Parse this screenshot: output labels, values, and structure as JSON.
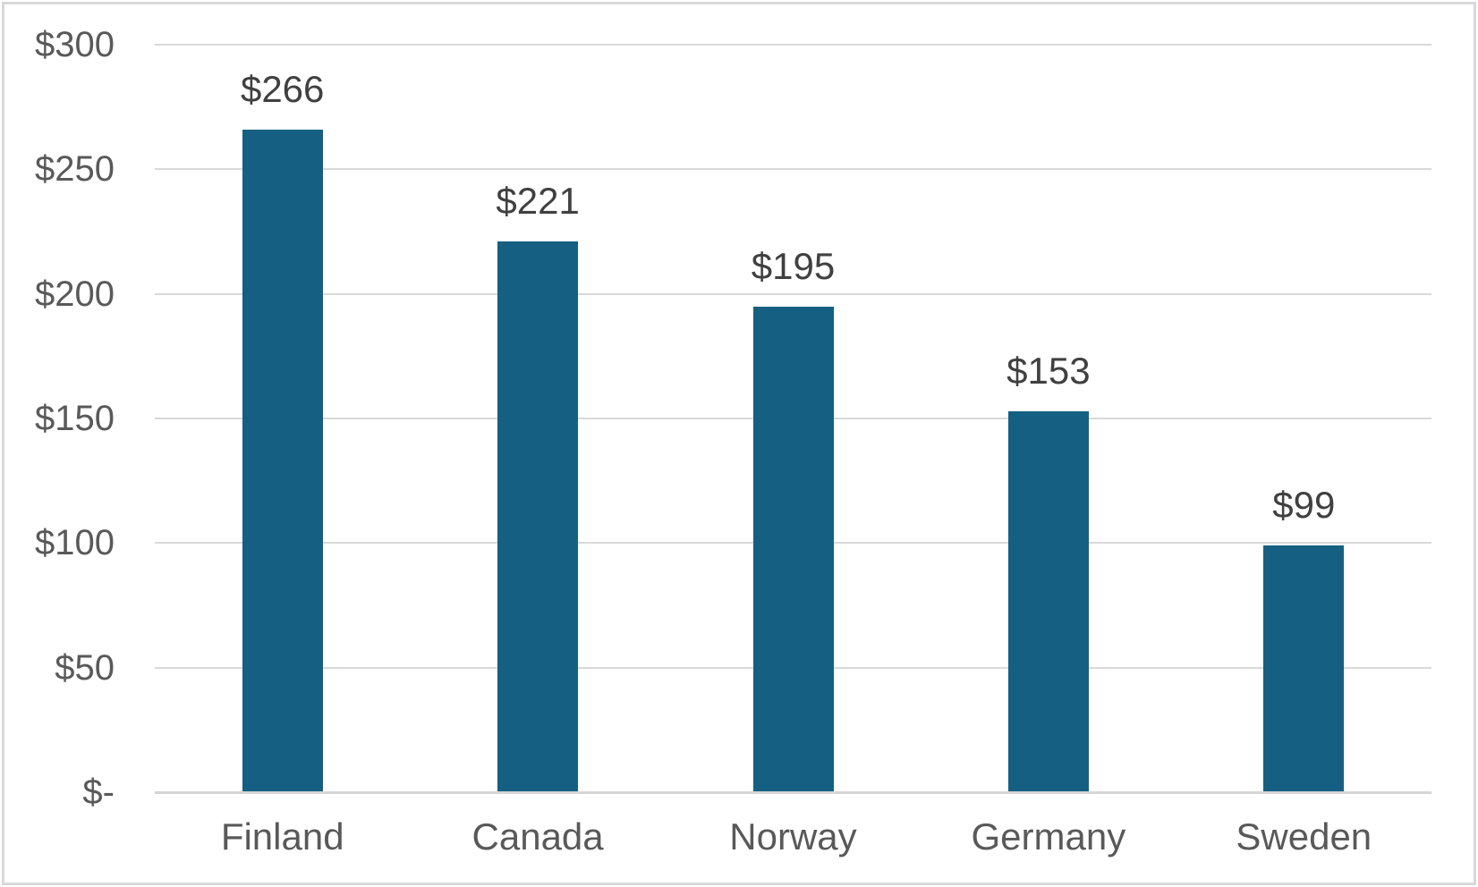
{
  "chart_data": {
    "type": "bar",
    "categories": [
      "Finland",
      "Canada",
      "Norway",
      "Germany",
      "Sweden"
    ],
    "values": [
      266,
      221,
      195,
      153,
      99
    ],
    "data_labels": [
      "$266",
      "$221",
      "$195",
      "$153",
      "$99"
    ],
    "y_axis": {
      "range": [
        0,
        300
      ],
      "tick_interval": 50,
      "ticks": [
        {
          "value": 300,
          "label": "$300"
        },
        {
          "value": 250,
          "label": "$250"
        },
        {
          "value": 200,
          "label": "$200"
        },
        {
          "value": 150,
          "label": "$150"
        },
        {
          "value": 100,
          "label": "$100"
        },
        {
          "value": 50,
          "label": "$50"
        },
        {
          "value": 0,
          "label": "$-"
        }
      ]
    },
    "grid": "horizontal",
    "legend": "none",
    "colors": {
      "bar": "#156082",
      "gridline": "#D9D9D9",
      "axis_line": "#D6D6D6",
      "tick_text": "#595959",
      "category_text": "#595959",
      "data_label_text": "#404040",
      "frame_border": "#D8D8D8",
      "background": "#FFFFFF"
    }
  }
}
